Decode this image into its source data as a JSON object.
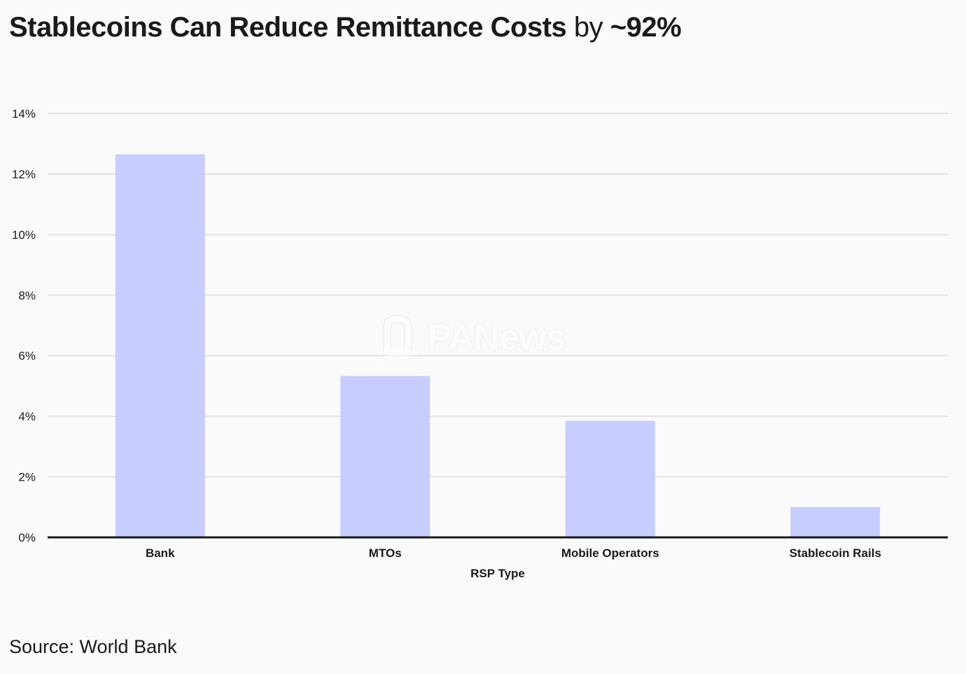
{
  "header": {
    "title_bold": "Stablecoins Can Reduce Remittance Costs",
    "title_light": " by ",
    "title_bold_end": "~92%"
  },
  "watermark": {
    "text": "PANews"
  },
  "footer": {
    "source": "Source: World Bank"
  },
  "chart_data": {
    "type": "bar",
    "title": "Stablecoins Can Reduce Remittance Costs by ~92%",
    "xlabel": "RSP Type",
    "ylabel": "",
    "categories": [
      "Bank",
      "MTOs",
      "Mobile Operators",
      "Stablecoin Rails"
    ],
    "values": [
      12.65,
      5.33,
      3.85,
      1.0
    ],
    "ylim": [
      0,
      14
    ],
    "yticks": [
      0,
      2,
      4,
      6,
      8,
      10,
      12,
      14
    ],
    "ytick_labels": [
      "0%",
      "2%",
      "4%",
      "6%",
      "8%",
      "10%",
      "12%",
      "14%"
    ],
    "grid": true,
    "bar_color": "#c8cdff",
    "gridline_color": "#e2e2e2",
    "axis_color": "#1a1a1a"
  }
}
